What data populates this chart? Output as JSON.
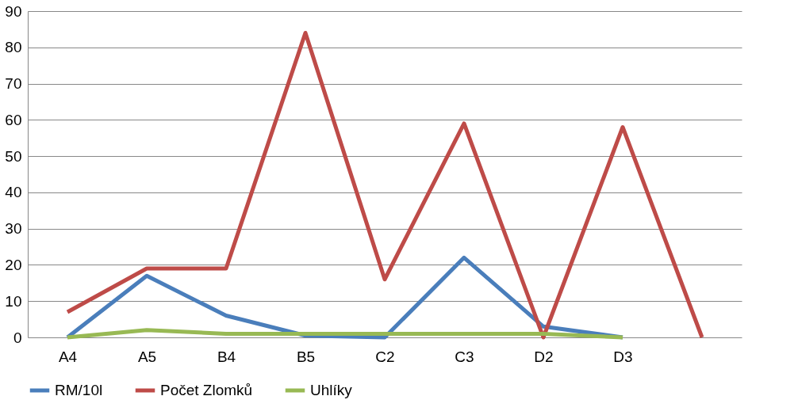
{
  "chart_data": {
    "type": "line",
    "categories": [
      "A4",
      "A5",
      "B4",
      "B5",
      "C2",
      "C3",
      "D2",
      "D3",
      null
    ],
    "series": [
      {
        "name": "RM/10l",
        "color": "#4a7ebb",
        "values": [
          0,
          17,
          6,
          0.5,
          0,
          22,
          3,
          0,
          null
        ]
      },
      {
        "name": "Počet Zlomků",
        "color": "#be4b48",
        "values": [
          7,
          19,
          19,
          84,
          16,
          59,
          0,
          58,
          0
        ]
      },
      {
        "name": "Uhlíky",
        "color": "#98b954",
        "values": [
          0,
          2,
          1,
          1,
          1,
          1,
          1,
          0,
          null
        ]
      }
    ],
    "ylim": [
      0,
      90
    ],
    "yticks": [
      0,
      10,
      20,
      30,
      40,
      50,
      60,
      70,
      80,
      90
    ],
    "grid": "y",
    "legend": "bottom",
    "marker": "none",
    "line_style": "solid"
  }
}
